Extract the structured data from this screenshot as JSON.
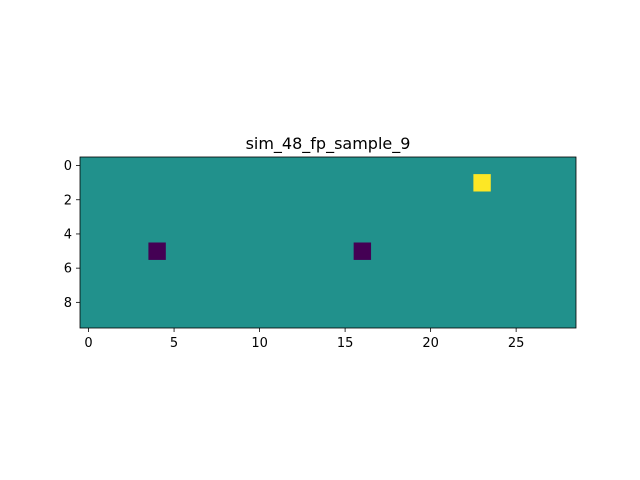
{
  "chart_data": {
    "type": "heatmap",
    "title": "sim_48_fp_sample_9",
    "xlabel": "",
    "ylabel": "",
    "rows": 10,
    "cols": 29,
    "xlim": [
      -0.5,
      28.5
    ],
    "ylim": [
      9.5,
      -0.5
    ],
    "y_axis_inverted": true,
    "grid": false,
    "colormap": "viridis",
    "background_value": 0,
    "background_color": "#21918c",
    "vmin": -1,
    "vmax": 1,
    "x_ticks": [
      0,
      5,
      10,
      15,
      20,
      25
    ],
    "y_ticks": [
      0,
      2,
      4,
      6,
      8
    ],
    "cells": [
      {
        "row": 1,
        "col": 23,
        "value": 1,
        "color": "#fde725"
      },
      {
        "row": 5,
        "col": 4,
        "value": -1,
        "color": "#440154"
      },
      {
        "row": 5,
        "col": 16,
        "value": -1,
        "color": "#440154"
      }
    ]
  }
}
